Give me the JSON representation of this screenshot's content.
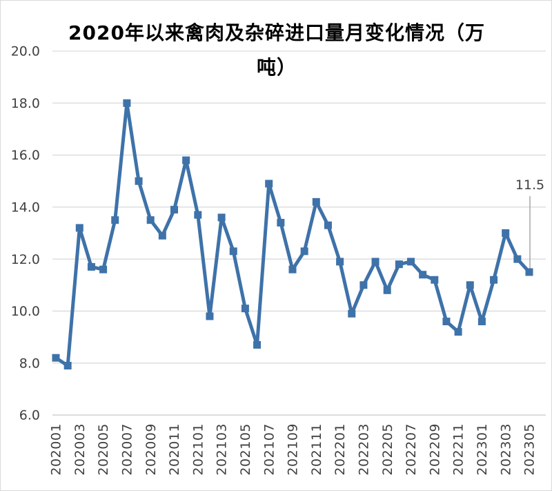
{
  "chart_data": {
    "type": "line",
    "title": "2020年以来禽肉及杂碎进口量月变化情况（万吨）",
    "title_lines": [
      "2020年以来禽肉及杂碎进口量月变化情况（万",
      "吨）"
    ],
    "categories": [
      "202001",
      "202002",
      "202003",
      "202004",
      "202005",
      "202006",
      "202007",
      "202008",
      "202009",
      "202010",
      "202011",
      "202012",
      "202101",
      "202102",
      "202103",
      "202104",
      "202105",
      "202106",
      "202107",
      "202108",
      "202109",
      "202110",
      "202111",
      "202112",
      "202201",
      "202202",
      "202203",
      "202204",
      "202205",
      "202206",
      "202207",
      "202208",
      "202209",
      "202210",
      "202211",
      "202212",
      "202301",
      "202302",
      "202303",
      "202304",
      "202305"
    ],
    "values": [
      8.2,
      7.9,
      13.2,
      11.7,
      11.6,
      13.5,
      18.0,
      15.0,
      13.5,
      12.9,
      13.9,
      15.8,
      13.7,
      9.8,
      13.6,
      12.3,
      10.1,
      8.7,
      14.9,
      13.4,
      11.6,
      12.3,
      14.2,
      13.3,
      11.9,
      9.9,
      11.0,
      11.9,
      10.8,
      11.8,
      11.9,
      11.4,
      11.2,
      9.6,
      9.2,
      11.0,
      9.6,
      11.2,
      13.0,
      12.0,
      11.5
    ],
    "xtick_labels": [
      "202001",
      "202003",
      "202005",
      "202007",
      "202009",
      "202011",
      "202101",
      "202103",
      "202105",
      "202107",
      "202109",
      "202111",
      "202201",
      "202203",
      "202205",
      "202207",
      "202209",
      "202211",
      "202301",
      "202303",
      "202305"
    ],
    "xtick_every": 2,
    "ytick_labels": [
      "6.0",
      "8.0",
      "10.0",
      "12.0",
      "14.0",
      "16.0",
      "18.0",
      "20.0"
    ],
    "ylim": [
      6.0,
      20.0
    ],
    "ytick_step": 2.0,
    "grid": true,
    "legend": "none",
    "last_point_label": "11.5",
    "xlabel": "",
    "ylabel": "",
    "colors": {
      "line": "#3E72A9",
      "grid": "#D9D9D9",
      "axis": "#C6C6C6",
      "tick_text": "#404040",
      "leader": "#A6A6A6",
      "title_text": "#000000",
      "background": "#FFFFFF",
      "border": "#D9D9D9"
    }
  }
}
